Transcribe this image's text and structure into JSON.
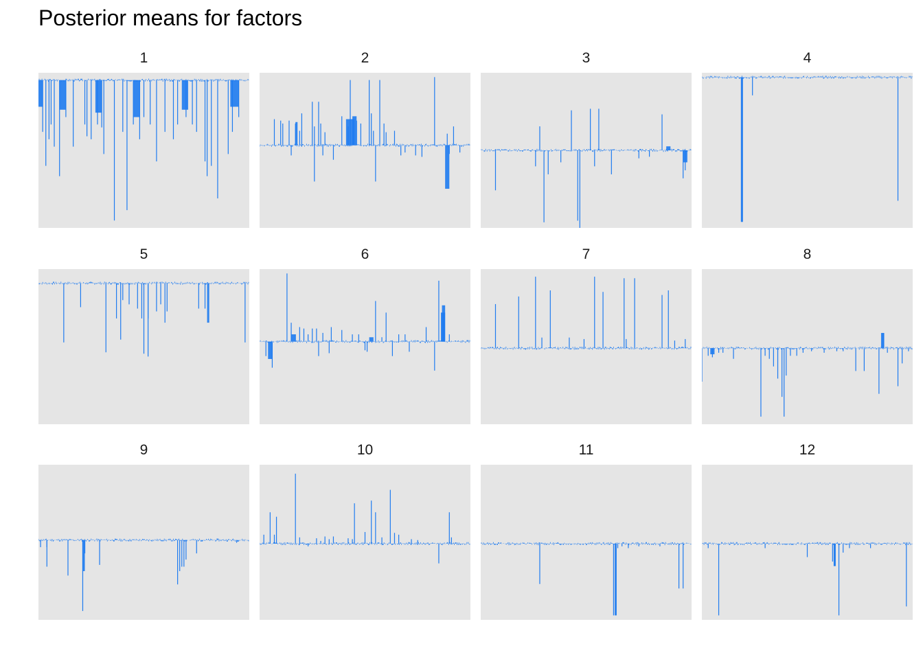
{
  "title": "Posterior means for factors",
  "colors": {
    "bar": "#1E7BF0",
    "panel_bg": "#E5E5E5",
    "background": "#FFFFFF"
  },
  "chart_data": {
    "type": "bar",
    "title": "Posterior means for factors",
    "layout": "facet grid, 3 rows x 4 columns, free y scales",
    "axes_visible": false,
    "grid": false,
    "legend": "none",
    "facets": [
      {
        "label": "1",
        "ylim": [
          -1.0,
          0.05
        ],
        "spikes": [
          [
            0.02,
            -0.35
          ],
          [
            0.035,
            -0.58
          ],
          [
            0.05,
            -0.4
          ],
          [
            0.06,
            -0.3
          ],
          [
            0.075,
            -0.45
          ],
          [
            0.1,
            -0.65
          ],
          [
            0.13,
            -0.25
          ],
          [
            0.165,
            -0.45
          ],
          [
            0.22,
            -0.3
          ],
          [
            0.23,
            -0.38
          ],
          [
            0.25,
            -0.4
          ],
          [
            0.28,
            -0.3
          ],
          [
            0.3,
            -0.32
          ],
          [
            0.31,
            -0.5
          ],
          [
            0.36,
            -0.95
          ],
          [
            0.4,
            -0.35
          ],
          [
            0.42,
            -0.88
          ],
          [
            0.45,
            -0.3
          ],
          [
            0.48,
            -0.4
          ],
          [
            0.5,
            -0.25
          ],
          [
            0.53,
            -0.3
          ],
          [
            0.56,
            -0.55
          ],
          [
            0.6,
            -0.35
          ],
          [
            0.64,
            -0.4
          ],
          [
            0.66,
            -0.3
          ],
          [
            0.7,
            -0.25
          ],
          [
            0.73,
            -0.3
          ],
          [
            0.75,
            -0.35
          ],
          [
            0.79,
            -0.55
          ],
          [
            0.8,
            -0.65
          ],
          [
            0.82,
            -0.58
          ],
          [
            0.85,
            -0.8
          ],
          [
            0.9,
            -0.5
          ],
          [
            0.92,
            -0.35
          ],
          [
            0.95,
            -0.25
          ]
        ],
        "bands": [
          [
            0.0,
            0.02,
            -0.18
          ],
          [
            0.1,
            0.13,
            -0.2
          ],
          [
            0.27,
            0.3,
            -0.22
          ],
          [
            0.45,
            0.48,
            -0.25
          ],
          [
            0.68,
            0.71,
            -0.2
          ],
          [
            0.91,
            0.95,
            -0.18
          ]
        ]
      },
      {
        "label": "2",
        "ylim": [
          -0.57,
          0.5
        ],
        "spikes": [
          [
            0.07,
            0.18
          ],
          [
            0.1,
            0.17
          ],
          [
            0.11,
            0.15
          ],
          [
            0.14,
            0.17
          ],
          [
            0.15,
            -0.07
          ],
          [
            0.17,
            0.15
          ],
          [
            0.19,
            0.1
          ],
          [
            0.2,
            0.22
          ],
          [
            0.25,
            0.3
          ],
          [
            0.26,
            0.13
          ],
          [
            0.28,
            0.3
          ],
          [
            0.29,
            0.15
          ],
          [
            0.26,
            -0.25
          ],
          [
            0.3,
            -0.07
          ],
          [
            0.31,
            0.09
          ],
          [
            0.35,
            -0.1
          ],
          [
            0.39,
            0.2
          ],
          [
            0.42,
            0.13
          ],
          [
            0.43,
            0.45
          ],
          [
            0.46,
            0.17
          ],
          [
            0.48,
            0.15
          ],
          [
            0.52,
            0.45
          ],
          [
            0.53,
            0.22
          ],
          [
            0.54,
            0.1
          ],
          [
            0.55,
            -0.25
          ],
          [
            0.57,
            0.45
          ],
          [
            0.59,
            0.15
          ],
          [
            0.6,
            0.09
          ],
          [
            0.64,
            0.1
          ],
          [
            0.67,
            -0.07
          ],
          [
            0.69,
            -0.05
          ],
          [
            0.74,
            -0.07
          ],
          [
            0.77,
            -0.08
          ],
          [
            0.83,
            0.47
          ],
          [
            0.89,
            0.08
          ],
          [
            0.9,
            -0.06
          ],
          [
            0.92,
            0.13
          ],
          [
            0.95,
            -0.05
          ]
        ],
        "bands": [
          [
            0.17,
            0.18,
            0.16
          ],
          [
            0.41,
            0.45,
            0.18
          ],
          [
            0.44,
            0.46,
            0.2
          ],
          [
            0.88,
            0.9,
            -0.3
          ]
        ]
      },
      {
        "label": "3",
        "ylim": [
          -0.97,
          0.97
        ],
        "spikes": [
          [
            0.07,
            -0.5
          ],
          [
            0.26,
            -0.2
          ],
          [
            0.28,
            0.3
          ],
          [
            0.3,
            -0.9
          ],
          [
            0.32,
            -0.3
          ],
          [
            0.43,
            0.5
          ],
          [
            0.46,
            -0.88
          ],
          [
            0.47,
            -0.98
          ],
          [
            0.52,
            0.52
          ],
          [
            0.54,
            -0.2
          ],
          [
            0.56,
            0.52
          ],
          [
            0.62,
            -0.3
          ],
          [
            0.75,
            -0.1
          ],
          [
            0.86,
            0.45
          ],
          [
            0.96,
            -0.35
          ],
          [
            0.97,
            -0.25
          ],
          [
            0.38,
            -0.15
          ],
          [
            0.8,
            -0.08
          ]
        ],
        "bands": [
          [
            0.88,
            0.9,
            0.05
          ],
          [
            0.96,
            0.98,
            -0.15
          ]
        ]
      },
      {
        "label": "4",
        "ylim": [
          -1.0,
          0.03
        ],
        "spikes": [
          [
            0.19,
            -0.96
          ],
          [
            0.24,
            -0.12
          ],
          [
            0.93,
            -0.82
          ]
        ],
        "bands": [
          [
            0.185,
            0.195,
            -0.96
          ]
        ]
      },
      {
        "label": "5",
        "ylim": [
          -1.0,
          0.1
        ],
        "spikes": [
          [
            0.12,
            -0.42
          ],
          [
            0.2,
            -0.17
          ],
          [
            0.32,
            -0.49
          ],
          [
            0.37,
            -0.25
          ],
          [
            0.39,
            -0.4
          ],
          [
            0.4,
            -0.12
          ],
          [
            0.43,
            -0.15
          ],
          [
            0.47,
            -0.18
          ],
          [
            0.49,
            -0.25
          ],
          [
            0.52,
            -0.25
          ],
          [
            0.5,
            -0.5
          ],
          [
            0.52,
            -0.52
          ],
          [
            0.56,
            -0.2
          ],
          [
            0.58,
            -0.15
          ],
          [
            0.6,
            -0.28
          ],
          [
            0.61,
            -0.2
          ],
          [
            0.76,
            -0.18
          ],
          [
            0.79,
            -0.18
          ],
          [
            0.98,
            -0.42
          ]
        ],
        "bands": [
          [
            0.8,
            0.81,
            -0.28
          ]
        ]
      },
      {
        "label": "6",
        "ylim": [
          -0.57,
          0.5
        ],
        "spikes": [
          [
            0.03,
            -0.1
          ],
          [
            0.06,
            -0.18
          ],
          [
            0.13,
            0.47
          ],
          [
            0.15,
            0.13
          ],
          [
            0.17,
            0.05
          ],
          [
            0.19,
            0.1
          ],
          [
            0.21,
            0.09
          ],
          [
            0.23,
            0.05
          ],
          [
            0.25,
            0.09
          ],
          [
            0.27,
            0.09
          ],
          [
            0.28,
            -0.1
          ],
          [
            0.3,
            0.06
          ],
          [
            0.33,
            -0.08
          ],
          [
            0.34,
            0.1
          ],
          [
            0.39,
            0.08
          ],
          [
            0.44,
            0.05
          ],
          [
            0.47,
            0.05
          ],
          [
            0.5,
            -0.06
          ],
          [
            0.51,
            -0.07
          ],
          [
            0.55,
            0.28
          ],
          [
            0.58,
            0.03
          ],
          [
            0.6,
            0.2
          ],
          [
            0.63,
            -0.1
          ],
          [
            0.66,
            0.05
          ],
          [
            0.69,
            0.05
          ],
          [
            0.71,
            -0.07
          ],
          [
            0.79,
            0.1
          ],
          [
            0.83,
            -0.2
          ],
          [
            0.85,
            0.42
          ],
          [
            0.87,
            0.03
          ],
          [
            0.9,
            0.05
          ]
        ],
        "bands": [
          [
            0.04,
            0.06,
            -0.12
          ],
          [
            0.15,
            0.17,
            0.05
          ],
          [
            0.86,
            0.88,
            0.2
          ],
          [
            0.865,
            0.88,
            0.25
          ],
          [
            0.52,
            0.54,
            0.03
          ]
        ]
      },
      {
        "label": "7",
        "ylim": [
          -0.5,
          0.52
        ],
        "spikes": [
          [
            0.07,
            0.29
          ],
          [
            0.18,
            0.34
          ],
          [
            0.26,
            0.47
          ],
          [
            0.29,
            0.07
          ],
          [
            0.33,
            0.38
          ],
          [
            0.42,
            0.07
          ],
          [
            0.49,
            0.06
          ],
          [
            0.54,
            0.47
          ],
          [
            0.58,
            0.37
          ],
          [
            0.68,
            0.46
          ],
          [
            0.69,
            0.06
          ],
          [
            0.73,
            0.46
          ],
          [
            0.86,
            0.35
          ],
          [
            0.89,
            0.38
          ],
          [
            0.92,
            0.05
          ],
          [
            0.97,
            0.06
          ]
        ],
        "bands": []
      },
      {
        "label": "8",
        "ylim": [
          -0.5,
          0.52
        ],
        "spikes": [
          [
            0.0,
            -0.22
          ],
          [
            0.03,
            -0.05
          ],
          [
            0.05,
            -0.06
          ],
          [
            0.08,
            -0.03
          ],
          [
            0.1,
            -0.03
          ],
          [
            0.15,
            -0.07
          ],
          [
            0.28,
            -0.45
          ],
          [
            0.3,
            -0.05
          ],
          [
            0.32,
            -0.07
          ],
          [
            0.34,
            -0.12
          ],
          [
            0.36,
            -0.2
          ],
          [
            0.38,
            -0.32
          ],
          [
            0.39,
            -0.45
          ],
          [
            0.4,
            -0.18
          ],
          [
            0.42,
            -0.05
          ],
          [
            0.45,
            -0.05
          ],
          [
            0.48,
            -0.03
          ],
          [
            0.52,
            -0.02
          ],
          [
            0.58,
            -0.03
          ],
          [
            0.64,
            -0.02
          ],
          [
            0.67,
            -0.02
          ],
          [
            0.73,
            -0.15
          ],
          [
            0.77,
            -0.15
          ],
          [
            0.84,
            -0.3
          ],
          [
            0.86,
            0.1
          ],
          [
            0.88,
            -0.03
          ],
          [
            0.93,
            -0.25
          ],
          [
            0.95,
            -0.1
          ],
          [
            0.98,
            -0.02
          ]
        ],
        "bands": [
          [
            0.85,
            0.865,
            0.1
          ],
          [
            0.04,
            0.06,
            -0.04
          ]
        ]
      },
      {
        "label": "9",
        "ylim": [
          -0.9,
          0.85
        ],
        "spikes": [
          [
            0.01,
            -0.08
          ],
          [
            0.04,
            -0.08
          ],
          [
            0.04,
            -0.3
          ],
          [
            0.14,
            -0.4
          ],
          [
            0.21,
            -0.8
          ],
          [
            0.22,
            -0.15
          ],
          [
            0.29,
            -0.28
          ],
          [
            0.66,
            -0.5
          ],
          [
            0.67,
            -0.35
          ],
          [
            0.68,
            -0.3
          ],
          [
            0.69,
            -0.3
          ],
          [
            0.7,
            -0.22
          ],
          [
            0.75,
            -0.15
          ],
          [
            0.94,
            -0.03
          ]
        ],
        "bands": [
          [
            0.21,
            0.22,
            -0.35
          ]
        ]
      },
      {
        "label": "10",
        "ylim": [
          -0.85,
          0.88
        ],
        "spikes": [
          [
            0.02,
            0.1
          ],
          [
            0.05,
            0.35
          ],
          [
            0.07,
            0.1
          ],
          [
            0.08,
            0.3
          ],
          [
            0.17,
            0.78
          ],
          [
            0.19,
            0.07
          ],
          [
            0.23,
            -0.03
          ],
          [
            0.27,
            0.06
          ],
          [
            0.29,
            0.03
          ],
          [
            0.31,
            0.08
          ],
          [
            0.33,
            0.05
          ],
          [
            0.35,
            0.08
          ],
          [
            0.42,
            0.06
          ],
          [
            0.44,
            0.05
          ],
          [
            0.45,
            0.45
          ],
          [
            0.5,
            0.13
          ],
          [
            0.53,
            0.48
          ],
          [
            0.55,
            0.35
          ],
          [
            0.58,
            0.07
          ],
          [
            0.62,
            0.6
          ],
          [
            0.64,
            0.12
          ],
          [
            0.66,
            0.1
          ],
          [
            0.72,
            0.05
          ],
          [
            0.75,
            0.04
          ],
          [
            0.85,
            -0.22
          ],
          [
            0.9,
            0.35
          ],
          [
            0.91,
            0.07
          ]
        ],
        "bands": []
      },
      {
        "label": "11",
        "ylim": [
          -0.85,
          0.88
        ],
        "spikes": [
          [
            0.28,
            -0.45
          ],
          [
            0.63,
            -0.8
          ],
          [
            0.65,
            -0.05
          ],
          [
            0.67,
            -0.03
          ],
          [
            0.7,
            -0.05
          ],
          [
            0.75,
            -0.03
          ],
          [
            0.85,
            -0.03
          ],
          [
            0.94,
            -0.5
          ],
          [
            0.96,
            -0.5
          ]
        ],
        "bands": [
          [
            0.635,
            0.645,
            -0.8
          ]
        ]
      },
      {
        "label": "12",
        "ylim": [
          -0.85,
          0.88
        ],
        "spikes": [
          [
            0.03,
            -0.05
          ],
          [
            0.08,
            -0.8
          ],
          [
            0.3,
            -0.05
          ],
          [
            0.5,
            -0.15
          ],
          [
            0.62,
            -0.2
          ],
          [
            0.63,
            -0.25
          ],
          [
            0.65,
            -0.8
          ],
          [
            0.67,
            -0.1
          ],
          [
            0.7,
            -0.05
          ],
          [
            0.8,
            -0.05
          ],
          [
            0.97,
            -0.7
          ]
        ],
        "bands": [
          [
            0.625,
            0.635,
            -0.25
          ]
        ]
      }
    ]
  }
}
